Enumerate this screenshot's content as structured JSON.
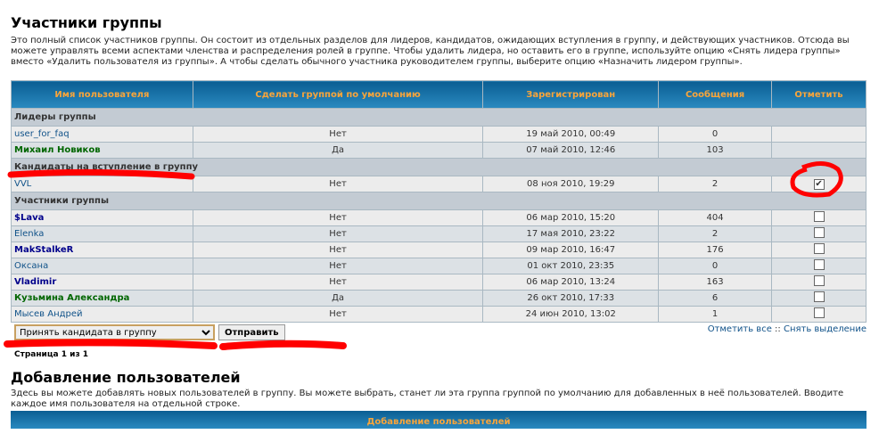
{
  "section1": {
    "title": "Участники группы",
    "description": "Это полный список участников группы. Он состоит из отдельных разделов для лидеров, кандидатов, ожидающих вступления в группу, и действующих участников. Отсюда вы можете управлять всеми аспектами членства и распределения ролей в группе. Чтобы удалить лидера, но оставить его в группе, используйте опцию «Снять лидера группы» вместо «Удалить пользователя из группы». А чтобы сделать обычного участника руководителем группы, выберите опцию «Назначить лидером группы»."
  },
  "table": {
    "headers": [
      "Имя пользователя",
      "Сделать группой по умолчанию",
      "Зарегистрирован",
      "Сообщения",
      "Отметить"
    ],
    "leaders_label": "Лидеры группы",
    "leaders": [
      {
        "name": "user_for_faq",
        "default": "Нет",
        "registered": "19 май 2010, 00:49",
        "posts": "0"
      },
      {
        "name": "Михаил Новиков",
        "default": "Да",
        "registered": "07 май 2010, 12:46",
        "posts": "103"
      }
    ],
    "candidates_label": "Кандидаты на вступление в группу",
    "candidates": [
      {
        "name": "VVL",
        "default": "Нет",
        "registered": "08 ноя 2010, 19:29",
        "posts": "2",
        "checked": true
      }
    ],
    "members_label": "Участники группы",
    "members": [
      {
        "name": "$Lava",
        "default": "Нет",
        "registered": "06 мар 2010, 15:20",
        "posts": "404"
      },
      {
        "name": "Elenka",
        "default": "Нет",
        "registered": "17 мая 2010, 23:22",
        "posts": "2"
      },
      {
        "name": "MakStalkeR",
        "default": "Нет",
        "registered": "09 мар 2010, 16:47",
        "posts": "176"
      },
      {
        "name": "Оксана",
        "default": "Нет",
        "registered": "01 окт 2010, 23:35",
        "posts": "0"
      },
      {
        "name": "Vladimir",
        "default": "Нет",
        "registered": "06 мар 2010, 13:24",
        "posts": "163"
      },
      {
        "name": "Кузьмина Александра",
        "default": "Да",
        "registered": "26 окт 2010, 17:33",
        "posts": "6"
      },
      {
        "name": "Мысев Андрей",
        "default": "Нет",
        "registered": "24 июн 2010, 13:02",
        "posts": "1"
      }
    ]
  },
  "footer": {
    "action_selected": "Принять кандидата в группу",
    "submit": "Отправить",
    "mark_all": "Отметить все",
    "separator": " :: ",
    "unmark_all": "Снять выделение"
  },
  "pagination": "Страница 1 из 1",
  "section2": {
    "title": "Добавление пользователей",
    "description": "Здесь вы можете добавлять новых пользователей в группу. Вы можете выбрать, станет ли эта группа группой по умолчанию для добавленных в неё пользователей. Вводите каждое имя пользователя на отдельной строке.",
    "table_header": "Добавление пользователей"
  },
  "colors": {
    "header_bg": "#0b5e93",
    "header_text": "#f9a53a",
    "annotation": "#ff0000"
  }
}
